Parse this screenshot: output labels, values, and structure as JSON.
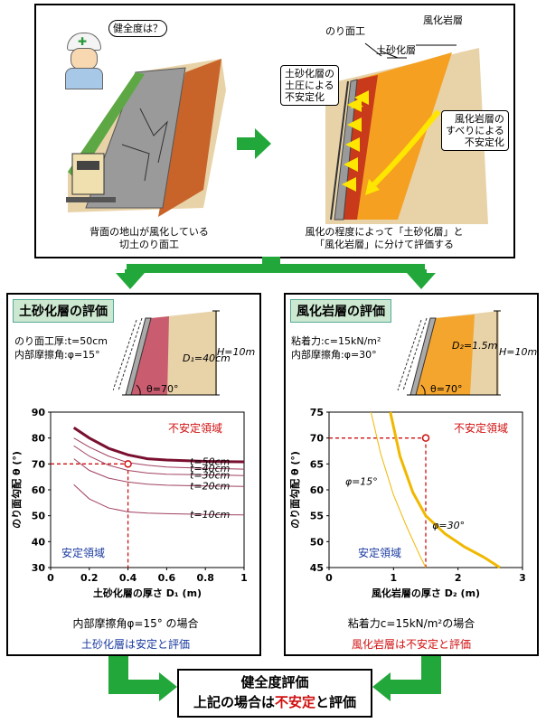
{
  "top": {
    "speech": "健全度は？",
    "left_caption_1": "背面の地山が風化している",
    "left_caption_2": "切土のり面工",
    "right_caption_1": "風化の程度によって「土砂化層」と",
    "right_caption_2": "「風化岩層」に分けて評価する",
    "label_norimen": "のり面工",
    "label_fuka": "風化岩層",
    "label_dosha": "土砂化層",
    "bubble_dosha": [
      "土砂化層の",
      "土圧による",
      "不安定化"
    ],
    "bubble_fuka": [
      "風化岩層の",
      "すべりによる",
      "不安定化"
    ]
  },
  "left_panel": {
    "title": "土砂化層の評価",
    "params_1": "のり面工厚:t=50cm",
    "params_2": "内部摩擦角:φ=15°",
    "d_label": "D₁=40cm",
    "h_label": "H=10m",
    "theta_label": "θ=70°",
    "chart_caption": "内部摩擦角φ=15° の場合",
    "result": "土砂化層は安定と評価"
  },
  "right_panel": {
    "title": "風化岩層の評価",
    "params_1": "粘着力:c=15kN/m²",
    "params_2": "内部摩擦角:φ=30°",
    "d_label": "D₂=1.5m",
    "h_label": "H=10m",
    "theta_label": "θ=70°",
    "chart_caption": "粘着力c=15kN/m²の場合",
    "result": "風化岩層は不安定と評価"
  },
  "bottom": {
    "line1": "健全度評価",
    "line2_pre": "上記の場合は",
    "line2_red": "不安定",
    "line2_post": "と評価"
  },
  "colors": {
    "green": "#22a83a",
    "red": "#d01010",
    "blue": "#1a3aa0",
    "maroon": "#7a1030",
    "gold": "#f0b800"
  },
  "chart_data": [
    {
      "type": "line",
      "xlabel": "土砂化層の厚さ D₁ (m)",
      "ylabel": "のり面勾配 θ (°)",
      "xlim": [
        0,
        1
      ],
      "ylim": [
        30,
        90
      ],
      "xticks": [
        "0",
        "0.2",
        "0.4",
        "0.6",
        "0.8",
        "1"
      ],
      "yticks": [
        "30",
        "40",
        "50",
        "60",
        "70",
        "80",
        "90"
      ],
      "region_unstable": "不安定領域",
      "region_stable": "安定領域",
      "marker": {
        "x": 0.4,
        "y": 70
      },
      "series": [
        {
          "name": "t=50cm",
          "x": [
            0.12,
            0.2,
            0.3,
            0.4,
            0.5,
            0.6,
            0.8,
            1.0
          ],
          "y": [
            84,
            80,
            76,
            73.5,
            72,
            71.5,
            71,
            70.8
          ]
        },
        {
          "name": "t=40cm",
          "x": [
            0.12,
            0.2,
            0.3,
            0.4,
            0.5,
            0.6,
            0.8,
            1.0
          ],
          "y": [
            80,
            76.5,
            73,
            70.5,
            69.5,
            68.8,
            68.3,
            68
          ]
        },
        {
          "name": "t=30cm",
          "x": [
            0.12,
            0.2,
            0.3,
            0.4,
            0.5,
            0.6,
            0.8,
            1.0
          ],
          "y": [
            77,
            73,
            69.5,
            67.5,
            66.5,
            66,
            65.8,
            65.5
          ]
        },
        {
          "name": "t=20cm",
          "x": [
            0.12,
            0.2,
            0.3,
            0.4,
            0.5,
            0.6,
            0.8,
            1.0
          ],
          "y": [
            72,
            67.5,
            64.5,
            63,
            62.2,
            61.8,
            61.5,
            61.3
          ]
        },
        {
          "name": "t=10cm",
          "x": [
            0.12,
            0.2,
            0.3,
            0.4,
            0.5,
            0.6,
            0.8,
            1.0
          ],
          "y": [
            62,
            56.5,
            53,
            51.5,
            51,
            50.8,
            50.5,
            50.3
          ]
        }
      ]
    },
    {
      "type": "line",
      "xlabel": "風化岩層の厚さ D₂ (m)",
      "ylabel": "のり面勾配 θ (°)",
      "xlim": [
        0,
        3
      ],
      "ylim": [
        45,
        75
      ],
      "xticks": [
        "0",
        "1",
        "2",
        "3"
      ],
      "yticks": [
        "45",
        "50",
        "55",
        "60",
        "65",
        "70",
        "75"
      ],
      "region_unstable": "不安定領域",
      "region_stable": "安定領域",
      "marker": {
        "x": 1.5,
        "y": 70
      },
      "series": [
        {
          "name": "φ=15°",
          "x": [
            0.65,
            0.8,
            1.0,
            1.2,
            1.4,
            1.5
          ],
          "y": [
            75,
            67,
            59,
            53,
            47.5,
            45
          ]
        },
        {
          "name": "φ=30°",
          "x": [
            0.95,
            1.1,
            1.3,
            1.5,
            1.8,
            2.1,
            2.4,
            2.65
          ],
          "y": [
            75,
            66.5,
            59.5,
            55,
            51.5,
            49,
            47,
            45
          ]
        }
      ]
    }
  ]
}
